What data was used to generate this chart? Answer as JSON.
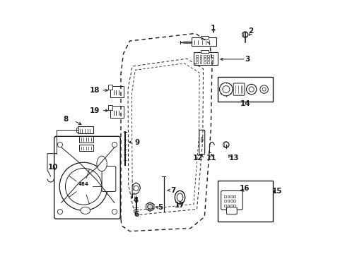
{
  "background_color": "#ffffff",
  "figsize": [
    4.89,
    3.6
  ],
  "dpi": 100,
  "dark": "#1a1a1a",
  "label_fontsize": 7.5,
  "door_outline": {
    "x": [
      0.415,
      0.415,
      0.425,
      0.445,
      0.62,
      0.66,
      0.67,
      0.665,
      0.645,
      0.59,
      0.445,
      0.415
    ],
    "y": [
      0.12,
      0.68,
      0.76,
      0.8,
      0.83,
      0.8,
      0.74,
      0.52,
      0.15,
      0.11,
      0.1,
      0.12
    ]
  },
  "door_inner": {
    "x": [
      0.445,
      0.443,
      0.455,
      0.59,
      0.628,
      0.628,
      0.608,
      0.47,
      0.445
    ],
    "y": [
      0.27,
      0.63,
      0.71,
      0.74,
      0.7,
      0.43,
      0.18,
      0.155,
      0.27
    ]
  },
  "door_inner2": {
    "x": [
      0.46,
      0.458,
      0.468,
      0.582,
      0.612,
      0.61,
      0.592,
      0.472,
      0.46
    ],
    "y": [
      0.28,
      0.61,
      0.68,
      0.71,
      0.67,
      0.44,
      0.2,
      0.178,
      0.28
    ]
  }
}
